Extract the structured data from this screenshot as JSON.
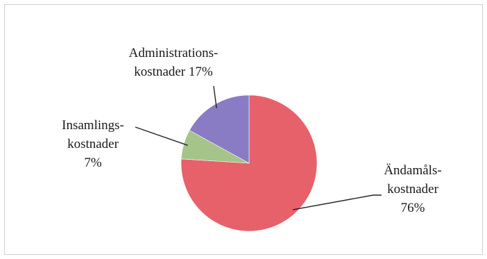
{
  "chart_data": {
    "type": "pie",
    "title": "",
    "slices": [
      {
        "line1": "Ändamåls-",
        "line2": "kostnader",
        "line3": "76%",
        "value": 76,
        "color": "#e7616b"
      },
      {
        "line1": "Insamlings-",
        "line2": "kostnader",
        "line3": "7%",
        "value": 7,
        "color": "#a4c489"
      },
      {
        "line1": "Administrations-",
        "line2": "kostnader 17%",
        "line3": "",
        "value": 17,
        "color": "#8a7cc4"
      }
    ],
    "legend": "none"
  }
}
